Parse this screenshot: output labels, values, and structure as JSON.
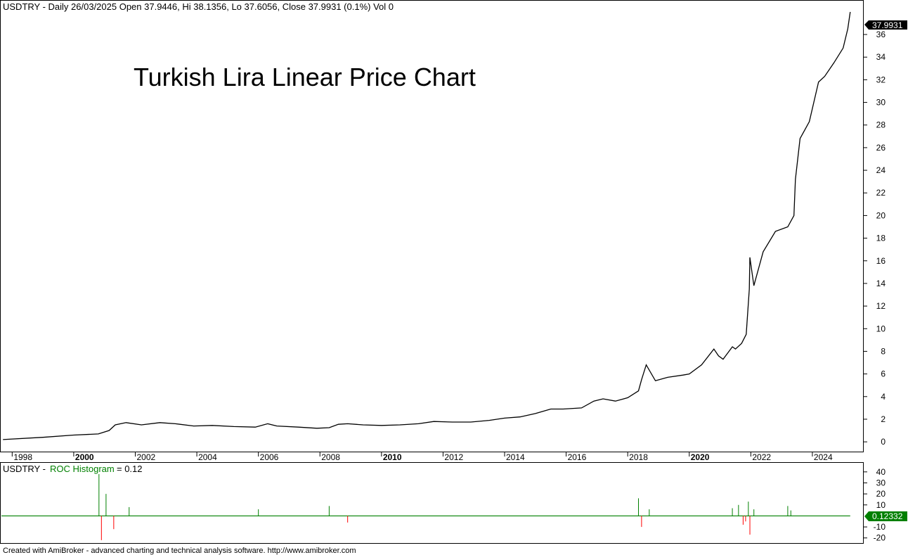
{
  "header": {
    "title_line": "USDTRY - Daily 26/03/2025 Open 37.9446, Hi 38.1356, Lo 37.6056, Close 37.9931 (0.1%) Vol 0"
  },
  "colors": {
    "price_line": "#000000",
    "roc_positive": "#008000",
    "roc_negative": "#ff0000",
    "last_value_badge_bg": "#000000",
    "roc_badge_bg": "#008000",
    "axis": "#000000"
  },
  "chart_data": [
    {
      "type": "line",
      "title": "Turkish Lira Linear Price Chart",
      "series": [
        {
          "name": "USDTRY",
          "x": [
            1997.7,
            1999.0,
            2000.0,
            2000.8,
            2001.15,
            2001.35,
            2001.7,
            2002.2,
            2002.8,
            2003.3,
            2003.9,
            2004.5,
            2005.2,
            2005.9,
            2006.3,
            2006.6,
            2007.3,
            2007.9,
            2008.3,
            2008.6,
            2008.9,
            2009.4,
            2010.0,
            2010.6,
            2011.2,
            2011.7,
            2012.3,
            2012.9,
            2013.5,
            2014.0,
            2014.5,
            2015.0,
            2015.5,
            2015.9,
            2016.5,
            2016.9,
            2017.2,
            2017.6,
            2018.0,
            2018.35,
            2018.45,
            2018.6,
            2018.9,
            2019.3,
            2019.8,
            2020.0,
            2020.4,
            2020.8,
            2020.95,
            2021.1,
            2021.4,
            2021.5,
            2021.7,
            2021.85,
            2021.95,
            2021.97,
            2022.1,
            2022.4,
            2022.8,
            2023.2,
            2023.4,
            2023.45,
            2023.6,
            2023.9,
            2024.2,
            2024.4,
            2024.7,
            2025.0,
            2025.15,
            2025.23
          ],
          "y": [
            0.2,
            0.4,
            0.6,
            0.7,
            1.0,
            1.5,
            1.7,
            1.5,
            1.7,
            1.6,
            1.4,
            1.45,
            1.35,
            1.3,
            1.6,
            1.4,
            1.3,
            1.2,
            1.25,
            1.55,
            1.6,
            1.5,
            1.45,
            1.5,
            1.6,
            1.8,
            1.75,
            1.75,
            1.9,
            2.1,
            2.2,
            2.5,
            2.9,
            2.9,
            3.0,
            3.6,
            3.8,
            3.6,
            3.9,
            4.5,
            5.5,
            6.8,
            5.4,
            5.7,
            5.9,
            6.0,
            6.8,
            8.2,
            7.6,
            7.3,
            8.4,
            8.2,
            8.7,
            9.5,
            13.5,
            16.3,
            13.8,
            16.8,
            18.6,
            19.0,
            20.0,
            23.2,
            26.8,
            28.3,
            31.8,
            32.3,
            33.5,
            34.8,
            36.5,
            37.99
          ]
        }
      ],
      "xlim": [
        1997.65,
        2025.6
      ],
      "ylim": [
        -0.8,
        38.8
      ],
      "x_ticks": [
        "1998",
        "2000",
        "2002",
        "2004",
        "2006",
        "2008",
        "2010",
        "2012",
        "2014",
        "2016",
        "2018",
        "2020",
        "2022",
        "2024"
      ],
      "bold_x_ticks": [
        "2000",
        "2010",
        "2020"
      ],
      "y_ticks": [
        0,
        2,
        4,
        6,
        8,
        10,
        12,
        14,
        16,
        18,
        20,
        22,
        24,
        26,
        28,
        30,
        32,
        34,
        36
      ],
      "last_value_label": "37.9931",
      "grid": false,
      "legend": "none"
    },
    {
      "type": "bar",
      "title": "USDTRY - ROC Histogram = 0.12",
      "title_prefix": "USDTRY - ",
      "title_name": "ROC Histogram",
      "title_value": " = 0.12",
      "y_ticks": [
        40,
        30,
        20,
        10,
        -10,
        -20
      ],
      "ylim": [
        -24,
        45
      ],
      "last_value_label": "0.12332",
      "spikes": {
        "x": [
          2000.82,
          2000.9,
          2001.05,
          2001.3,
          2001.8,
          2006.0,
          2008.3,
          2008.9,
          2018.35,
          2018.45,
          2018.7,
          2021.4,
          2021.6,
          2021.75,
          2021.83,
          2021.92,
          2021.97,
          2022.1,
          2023.2,
          2023.3
        ],
        "y": [
          38,
          -22,
          20,
          -12,
          8,
          6,
          9,
          -6,
          16,
          -10,
          6,
          7,
          10,
          -8,
          -5,
          13,
          -17,
          6,
          9,
          5
        ]
      }
    }
  ],
  "footer": {
    "credit": "Created with AmiBroker - advanced charting and technical analysis software. http://www.amibroker.com"
  }
}
